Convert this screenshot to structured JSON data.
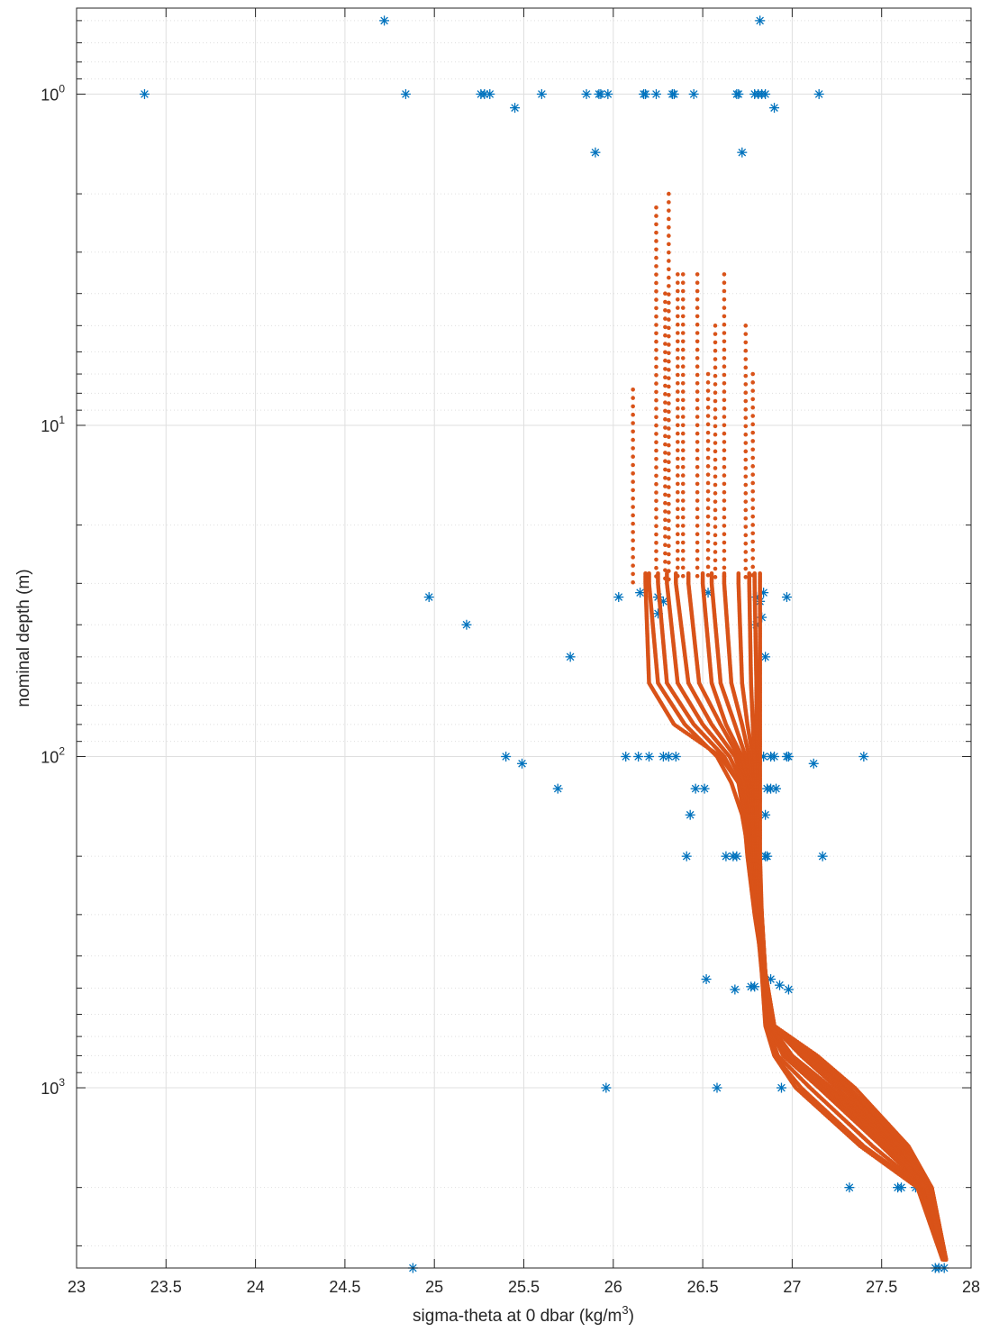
{
  "chart_data": {
    "type": "scatter",
    "title": "",
    "xlabel": "sigma-theta at 0 dbar (kg/m",
    "xlabel_superscript": "3",
    "xlabel_suffix": ")",
    "ylabel": "nominal depth (m)",
    "xlim": [
      23,
      28
    ],
    "ylim": [
      0.55,
      3500
    ],
    "yscale": "log",
    "yreversed": true,
    "grid": true,
    "minor_grid_y": true,
    "xticks": [
      23,
      23.5,
      24,
      24.5,
      25,
      25.5,
      26,
      26.5,
      27,
      27.5,
      28
    ],
    "xtick_labels": [
      "23",
      "23.5",
      "24",
      "24.5",
      "25",
      "25.5",
      "26",
      "26.5",
      "27",
      "27.5",
      "28"
    ],
    "yticks": [
      {
        "value": 1,
        "base": "10",
        "exp": "0"
      },
      {
        "value": 10,
        "base": "10",
        "exp": "1"
      },
      {
        "value": 100,
        "base": "10",
        "exp": "2"
      },
      {
        "value": 1000,
        "base": "10",
        "exp": "3"
      }
    ],
    "colors": {
      "series1": "#0072bd",
      "series2": "#d95319",
      "grid": "#dfdfdf",
      "axis": "#262626"
    },
    "series": [
      {
        "marker": "asterisk",
        "color": "#0072bd",
        "points": [
          [
            23.38,
            1
          ],
          [
            24.72,
            0.6
          ],
          [
            24.84,
            1
          ],
          [
            25.26,
            1
          ],
          [
            25.28,
            1
          ],
          [
            25.31,
            1
          ],
          [
            25.45,
            1.1
          ],
          [
            25.6,
            1
          ],
          [
            25.85,
            1
          ],
          [
            25.92,
            1
          ],
          [
            25.93,
            1
          ],
          [
            25.97,
            1
          ],
          [
            25.9,
            1.5
          ],
          [
            26.17,
            1
          ],
          [
            26.18,
            1
          ],
          [
            26.24,
            1
          ],
          [
            26.33,
            1
          ],
          [
            26.34,
            1
          ],
          [
            26.45,
            1
          ],
          [
            26.69,
            1
          ],
          [
            26.7,
            1
          ],
          [
            26.72,
            1.5
          ],
          [
            26.79,
            1
          ],
          [
            26.81,
            1
          ],
          [
            26.83,
            1
          ],
          [
            26.85,
            1
          ],
          [
            26.82,
            0.6
          ],
          [
            26.9,
            1.1
          ],
          [
            27.15,
            1
          ],
          [
            24.97,
            33
          ],
          [
            25.18,
            40
          ],
          [
            25.76,
            50
          ],
          [
            26.03,
            33
          ],
          [
            26.15,
            32
          ],
          [
            26.25,
            33
          ],
          [
            26.28,
            34
          ],
          [
            26.25,
            37
          ],
          [
            26.53,
            32
          ],
          [
            26.8,
            33
          ],
          [
            26.82,
            34
          ],
          [
            26.84,
            32
          ],
          [
            26.83,
            38
          ],
          [
            26.8,
            40
          ],
          [
            26.85,
            50
          ],
          [
            26.97,
            33
          ],
          [
            25.4,
            100
          ],
          [
            25.49,
            105
          ],
          [
            25.69,
            125
          ],
          [
            26.07,
            100
          ],
          [
            26.14,
            100
          ],
          [
            26.2,
            100
          ],
          [
            26.28,
            100
          ],
          [
            26.31,
            100
          ],
          [
            26.35,
            100
          ],
          [
            26.46,
            125
          ],
          [
            26.51,
            125
          ],
          [
            26.43,
            150
          ],
          [
            26.41,
            200
          ],
          [
            26.63,
            200
          ],
          [
            26.67,
            200
          ],
          [
            26.69,
            200
          ],
          [
            26.84,
            100
          ],
          [
            26.88,
            100
          ],
          [
            26.86,
            125
          ],
          [
            26.88,
            125
          ],
          [
            26.91,
            125
          ],
          [
            26.85,
            150
          ],
          [
            26.85,
            200
          ],
          [
            26.86,
            200
          ],
          [
            26.9,
            100
          ],
          [
            26.97,
            100
          ],
          [
            26.98,
            100
          ],
          [
            27.12,
            105
          ],
          [
            27.17,
            200
          ],
          [
            27.4,
            100
          ],
          [
            26.52,
            470
          ],
          [
            26.68,
            505
          ],
          [
            26.77,
            495
          ],
          [
            26.79,
            495
          ],
          [
            26.88,
            470
          ],
          [
            26.93,
            490
          ],
          [
            26.98,
            505
          ],
          [
            25.96,
            1000
          ],
          [
            26.58,
            1000
          ],
          [
            26.94,
            1000
          ],
          [
            27.28,
            1000
          ],
          [
            27.31,
            1000
          ],
          [
            27.32,
            2000
          ],
          [
            27.59,
            2000
          ],
          [
            27.61,
            2000
          ],
          [
            27.69,
            2000
          ],
          [
            24.88,
            3500
          ],
          [
            27.8,
            3500
          ],
          [
            27.82,
            3500
          ],
          [
            27.85,
            3500
          ]
        ]
      },
      {
        "marker": "dot",
        "color": "#d95319",
        "profile_tops": [
          [
            26.11,
            7.8
          ],
          [
            26.24,
            2.2
          ],
          [
            26.31,
            2.0
          ],
          [
            26.29,
            4.0
          ],
          [
            26.36,
            3.5
          ],
          [
            26.39,
            3.5
          ],
          [
            26.47,
            3.5
          ],
          [
            26.53,
            7.0
          ],
          [
            26.57,
            5.0
          ],
          [
            26.62,
            3.5
          ],
          [
            26.74,
            5.0
          ],
          [
            26.78,
            7.0
          ],
          [
            26.82,
            33.0
          ]
        ],
        "profile_nodes": {
          "z": [
            30,
            60,
            80,
            100,
            120,
            150,
            200,
            300,
            450,
            650,
            800,
            1000,
            1500,
            2000,
            3300
          ],
          "variants": [
            [
              26.18,
              26.2,
              26.34,
              26.6,
              26.7,
              26.73,
              26.75,
              26.79,
              26.84,
              26.86,
              26.9,
              27.05,
              27.4,
              27.72,
              27.85
            ],
            [
              26.2,
              26.25,
              26.4,
              26.58,
              26.66,
              26.72,
              26.76,
              26.8,
              26.83,
              26.85,
              26.9,
              27.02,
              27.38,
              27.7,
              27.84
            ],
            [
              26.25,
              26.3,
              26.45,
              26.62,
              26.7,
              26.75,
              26.77,
              26.8,
              26.84,
              26.86,
              26.92,
              27.1,
              27.45,
              27.73,
              27.85
            ],
            [
              26.3,
              26.36,
              26.5,
              26.65,
              26.72,
              26.76,
              26.78,
              26.81,
              26.84,
              26.87,
              26.95,
              27.15,
              27.5,
              27.74,
              27.85
            ],
            [
              26.35,
              26.42,
              26.55,
              26.68,
              26.73,
              26.77,
              26.78,
              26.81,
              26.84,
              26.88,
              26.98,
              27.2,
              27.55,
              27.76,
              27.86
            ],
            [
              26.42,
              26.48,
              26.6,
              26.7,
              26.75,
              26.77,
              26.79,
              26.81,
              26.84,
              26.89,
              27.05,
              27.25,
              27.58,
              27.77,
              27.86
            ],
            [
              26.5,
              26.55,
              26.63,
              26.72,
              26.76,
              26.78,
              26.79,
              26.82,
              26.85,
              26.9,
              27.1,
              27.3,
              27.62,
              27.78,
              27.86
            ],
            [
              26.55,
              26.6,
              26.68,
              26.74,
              26.77,
              26.78,
              26.79,
              26.82,
              26.84,
              26.88,
              26.97,
              27.18,
              27.52,
              27.75,
              27.85
            ],
            [
              26.62,
              26.66,
              26.72,
              26.76,
              26.78,
              26.79,
              26.8,
              26.82,
              26.85,
              26.9,
              27.12,
              27.32,
              27.63,
              27.78,
              27.86
            ],
            [
              26.7,
              26.72,
              26.75,
              26.78,
              26.79,
              26.8,
              26.8,
              26.82,
              26.85,
              26.88,
              27.0,
              27.22,
              27.56,
              27.76,
              27.85
            ],
            [
              26.76,
              26.77,
              26.78,
              26.79,
              26.8,
              26.8,
              26.81,
              26.83,
              26.85,
              26.89,
              27.08,
              27.28,
              27.6,
              27.77,
              27.86
            ],
            [
              26.79,
              26.8,
              26.8,
              26.81,
              26.81,
              26.81,
              26.81,
              26.83,
              26.85,
              26.88,
              26.99,
              27.2,
              27.54,
              27.75,
              27.85
            ],
            [
              26.82,
              26.82,
              26.82,
              26.82,
              26.82,
              26.82,
              26.82,
              26.83,
              26.85,
              26.9,
              27.14,
              27.35,
              27.65,
              27.78,
              27.86
            ]
          ]
        }
      }
    ]
  }
}
